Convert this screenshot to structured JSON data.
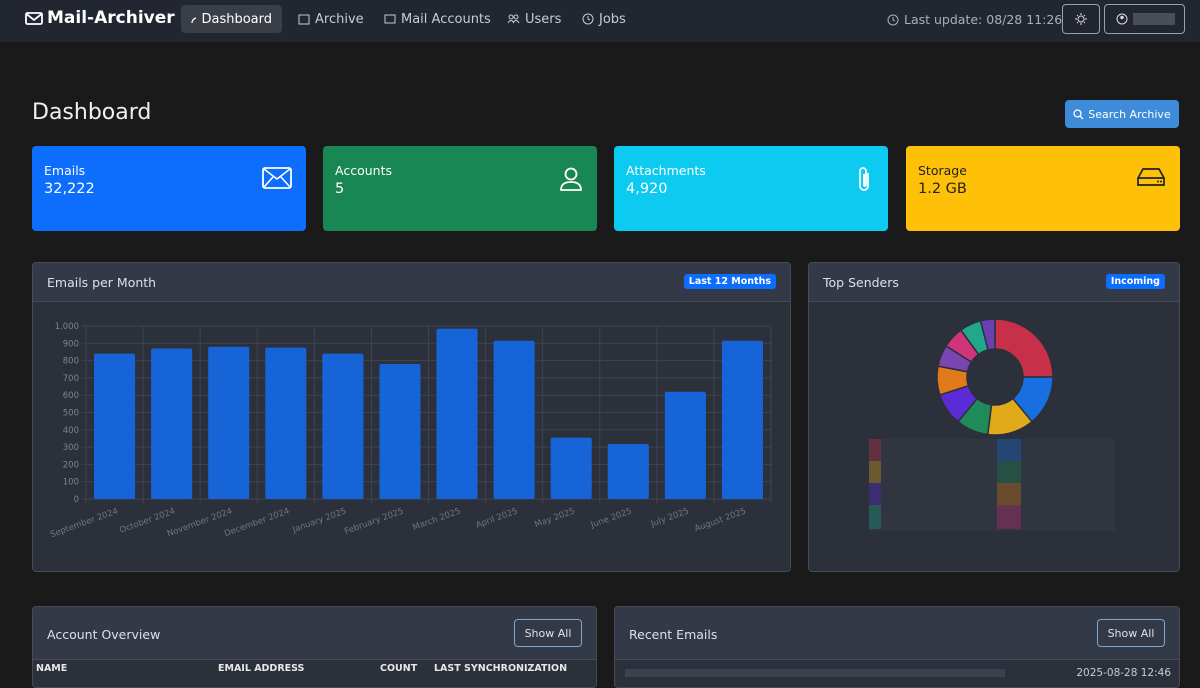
{
  "nav": {
    "brand": "Mail-Archiver",
    "items": [
      "Dashboard",
      "Archive",
      "Mail Accounts",
      "Users",
      "Jobs"
    ],
    "last_update": "Last update: 08/28 11:26"
  },
  "header": {
    "title": "Dashboard",
    "search_button": "Search Archive"
  },
  "stats": [
    {
      "label": "Emails",
      "value": "32,222"
    },
    {
      "label": "Accounts",
      "value": "5"
    },
    {
      "label": "Attachments",
      "value": "4,920"
    },
    {
      "label": "Storage",
      "value": "1.2 GB"
    }
  ],
  "chart_data": [
    {
      "type": "bar",
      "title": "Emails per Month",
      "badge": "Last 12 Months",
      "categories": [
        "September 2024",
        "October 2024",
        "November 2024",
        "December 2024",
        "January 2025",
        "February 2025",
        "March 2025",
        "April 2025",
        "May 2025",
        "June 2025",
        "July 2025",
        "August 2025"
      ],
      "values": [
        840,
        870,
        880,
        875,
        840,
        780,
        985,
        915,
        355,
        318,
        620,
        915
      ],
      "color": "#1764d8",
      "ylim": [
        0,
        1000
      ],
      "yticks": [
        0,
        100,
        200,
        300,
        400,
        500,
        600,
        700,
        800,
        900,
        {
          "value": 1000,
          "label": "1.000"
        }
      ],
      "grid": true
    },
    {
      "type": "pie",
      "title": "Top Senders",
      "badge": "Incoming",
      "values": [
        25,
        14,
        13,
        9,
        9,
        8,
        6,
        6,
        6,
        4
      ],
      "colors": [
        "#c8304a",
        "#1a6fe0",
        "#e0aa1a",
        "#1f8a5a",
        "#5b2bd6",
        "#e07a1a",
        "#7a45b0",
        "#d0347a",
        "#22a78a",
        "#6a3fb0"
      ]
    }
  ],
  "account_overview": {
    "title": "Account Overview",
    "button": "Show All",
    "columns": [
      "NAME",
      "EMAIL ADDRESS",
      "COUNT",
      "LAST SYNCHRONIZATION"
    ]
  },
  "recent_emails": {
    "title": "Recent Emails",
    "button": "Show All",
    "first_date": "2025-08-28 12:46"
  }
}
